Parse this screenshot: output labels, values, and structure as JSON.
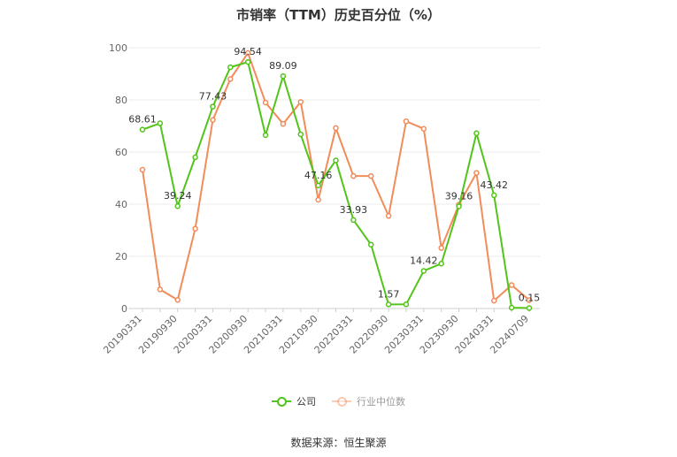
{
  "chart_data": {
    "type": "line",
    "title": "市销率（TTM）历史百分位（%）",
    "xlabel": "",
    "ylabel": "",
    "ylim": [
      0,
      100
    ],
    "yticks": [
      0,
      20,
      40,
      60,
      80,
      100
    ],
    "x": [
      "20190331",
      "",
      "20190930",
      "",
      "20200331",
      "",
      "20200930",
      "",
      "20210331",
      "",
      "20210930",
      "",
      "20220331",
      "",
      "20220930",
      "",
      "20230331",
      "",
      "20230930",
      "",
      "20240331",
      "",
      "20240709"
    ],
    "series": [
      {
        "name": "公司",
        "color": "#52c41a",
        "values": [
          68.61,
          71.0,
          39.24,
          58.0,
          77.43,
          92.5,
          94.54,
          66.5,
          89.09,
          66.8,
          47.16,
          56.8,
          33.93,
          24.5,
          1.57,
          1.6,
          14.42,
          17.2,
          39.16,
          67.2,
          43.42,
          0.3,
          0.15
        ],
        "labels": {
          "0": "68.61",
          "2": "39.24",
          "4": "77.43",
          "6": "94.54",
          "8": "89.09",
          "10": "47.16",
          "12": "33.93",
          "14": "1.57",
          "16": "14.42",
          "18": "39.16",
          "20": "43.42",
          "22": "0.15"
        }
      },
      {
        "name": "行业中位数",
        "color": "#f28c5a",
        "values": [
          53.2,
          7.3,
          3.3,
          30.6,
          72.3,
          88.0,
          98.0,
          79.0,
          70.8,
          79.2,
          41.7,
          69.2,
          50.8,
          50.8,
          35.5,
          71.8,
          68.9,
          23.2,
          39.8,
          52.0,
          3.0,
          9.0,
          3.2
        ]
      }
    ],
    "grid": true,
    "legend_position": "bottom"
  },
  "legend": [
    {
      "label": "公司",
      "color": "#52c41a"
    },
    {
      "label": "行业中位数",
      "color": "#f28c5a"
    }
  ],
  "source": "数据来源：恒生聚源"
}
